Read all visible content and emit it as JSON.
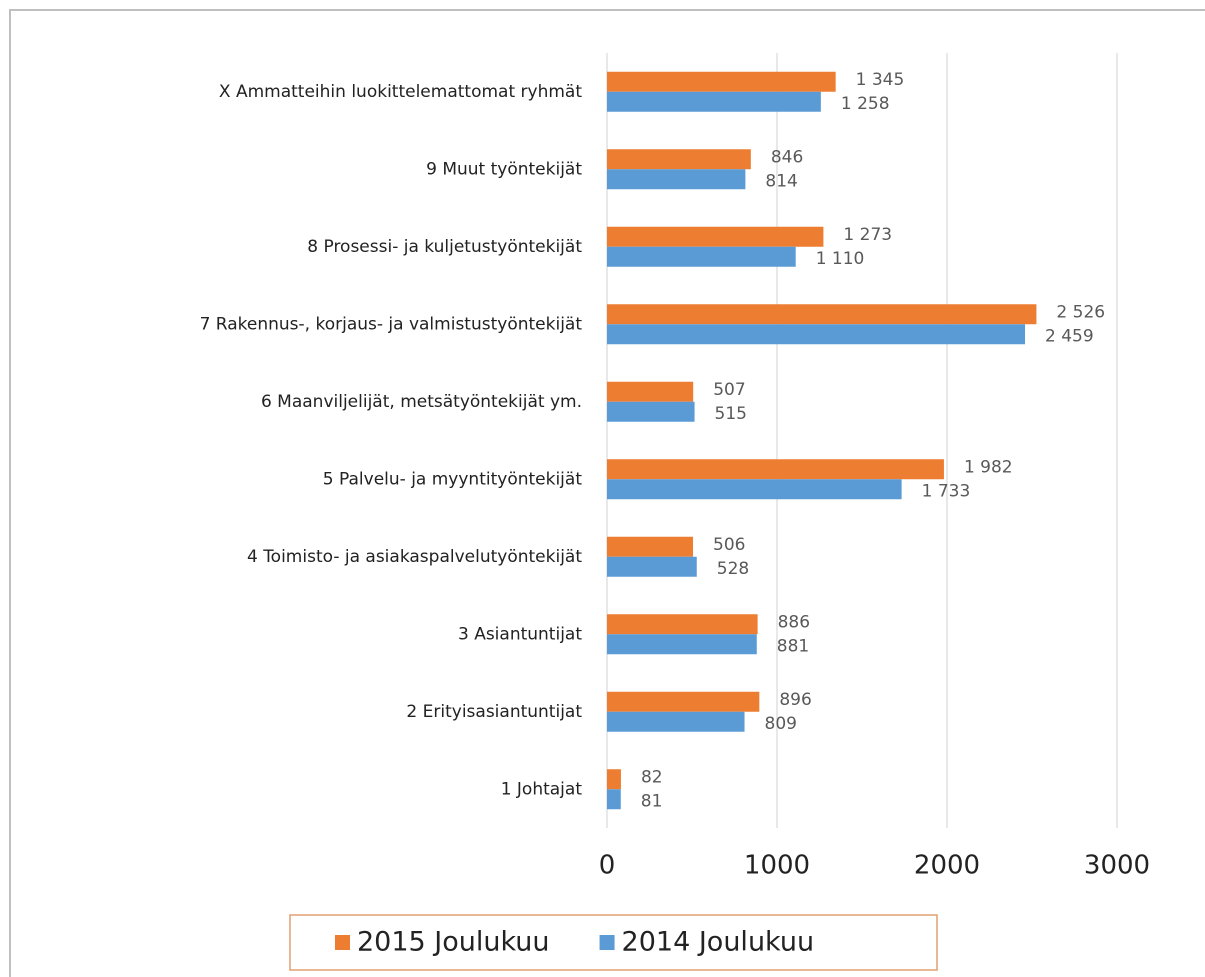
{
  "chart_data": {
    "type": "bar",
    "orientation": "horizontal",
    "categories": [
      "X Ammatteihin luokittelemattomat ryhmät",
      "9 Muut työntekijät",
      "8 Prosessi- ja kuljetustyöntekijät",
      "7 Rakennus-, korjaus- ja valmistustyöntekijät",
      "6 Maanviljelijät, metsätyöntekijät ym.",
      "5 Palvelu- ja myyntityöntekijät",
      "4 Toimisto- ja asiakaspalvelutyöntekijät",
      "3 Asiantuntijat",
      "2 Erityisasiantuntijat",
      "1 Johtajat"
    ],
    "series": [
      {
        "name": "2015 Joulukuu",
        "color": "#ed7d31",
        "values": [
          1345,
          846,
          1273,
          2526,
          507,
          1982,
          506,
          886,
          896,
          82
        ],
        "value_labels": [
          "1 345",
          "846",
          "1 273",
          "2 526",
          "507",
          "1 982",
          "506",
          "886",
          "896",
          "82"
        ]
      },
      {
        "name": "2014 Joulukuu",
        "color": "#5b9bd5",
        "values": [
          1258,
          814,
          1110,
          2459,
          515,
          1733,
          528,
          881,
          809,
          81
        ],
        "value_labels": [
          "1 258",
          "814",
          "1 110",
          "2 459",
          "515",
          "1 733",
          "528",
          "881",
          "809",
          "81"
        ]
      }
    ],
    "xlim": [
      0,
      3000
    ],
    "xticks": [
      0,
      1000,
      2000,
      3000
    ],
    "grid": true,
    "legend": "bottom"
  }
}
